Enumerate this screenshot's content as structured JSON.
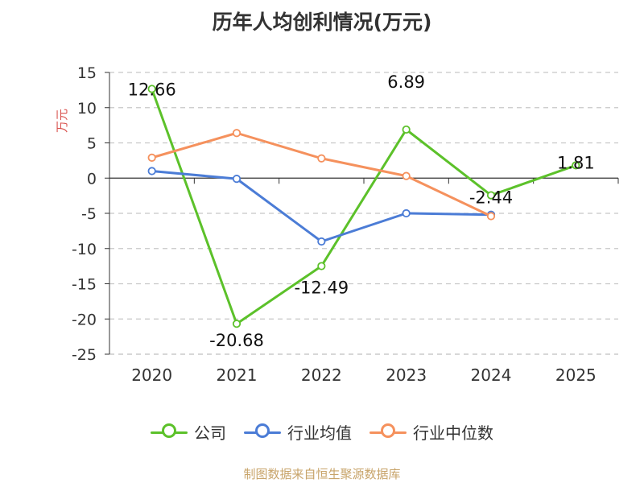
{
  "title": "历年人均创利情况(万元)",
  "source": "制图数据来自恒生聚源数据库",
  "chart_data": {
    "type": "line",
    "title": "历年人均创利情况(万元)",
    "ylabel": "万元",
    "xlabel": "",
    "categories": [
      "2020",
      "2021",
      "2022",
      "2023",
      "2024",
      "2025"
    ],
    "ylim": [
      -25,
      15
    ],
    "yticks": [
      15,
      10,
      5,
      0,
      -5,
      -10,
      -15,
      -20,
      -25
    ],
    "grid": "horizontal-dashed",
    "legend_position": "bottom",
    "series": [
      {
        "name": "公司",
        "color": "#5cc12a",
        "values": [
          12.66,
          -20.68,
          -12.49,
          6.89,
          -2.44,
          1.81
        ],
        "labels": [
          "12.66",
          "-20.68",
          "-12.49",
          "6.89",
          "-2.44",
          "1.81"
        ]
      },
      {
        "name": "行业均值",
        "color": "#4b7cd6",
        "values": [
          1.0,
          -0.1,
          -9.0,
          -5.0,
          -5.2,
          null
        ]
      },
      {
        "name": "行业中位数",
        "color": "#f5915d",
        "values": [
          2.9,
          6.4,
          2.8,
          0.3,
          -5.4,
          null
        ]
      }
    ]
  }
}
